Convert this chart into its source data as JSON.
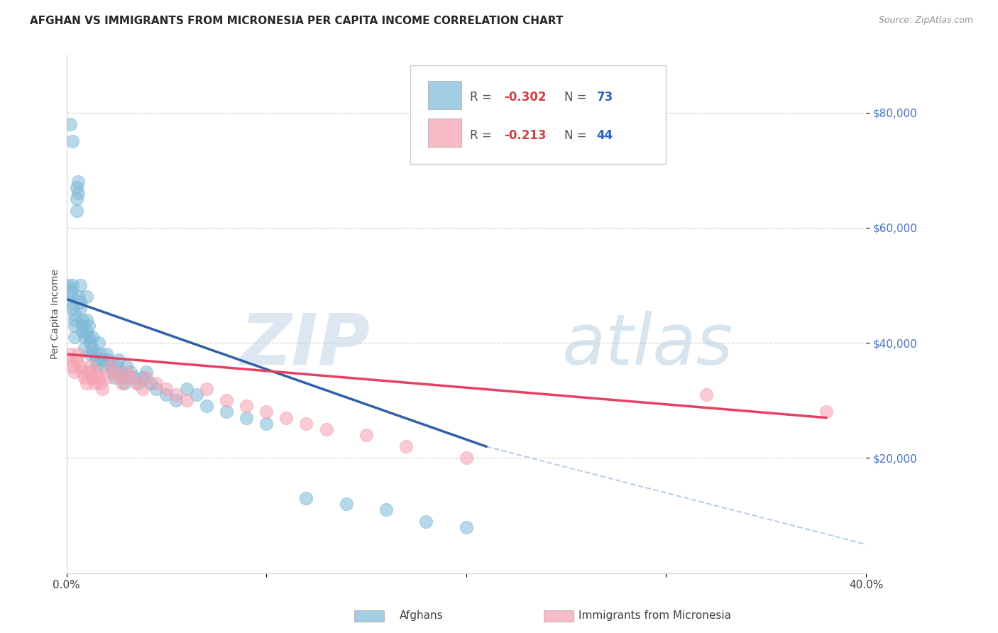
{
  "title": "AFGHAN VS IMMIGRANTS FROM MICRONESIA PER CAPITA INCOME CORRELATION CHART",
  "source": "Source: ZipAtlas.com",
  "ylabel": "Per Capita Income",
  "yticks": [
    20000,
    40000,
    60000,
    80000
  ],
  "ytick_labels": [
    "$20,000",
    "$40,000",
    "$60,000",
    "$80,000"
  ],
  "xlim": [
    0.0,
    0.4
  ],
  "ylim": [
    0,
    90000
  ],
  "afghan_color": "#7db8d8",
  "micronesia_color": "#f5a0b0",
  "trend_afghan_color": "#3060a8",
  "trend_micronesia_color": "#e84060",
  "trend_ext_color": "#b8cfe8",
  "background_color": "#ffffff",
  "legend_label_1": "Afghans",
  "legend_label_2": "Immigrants from Micronesia",
  "R1": "-0.302",
  "N1": "73",
  "R2": "-0.213",
  "N2": "44",
  "afghan_x": [
    0.001,
    0.002,
    0.002,
    0.002,
    0.003,
    0.003,
    0.003,
    0.003,
    0.004,
    0.004,
    0.004,
    0.004,
    0.005,
    0.005,
    0.005,
    0.006,
    0.006,
    0.006,
    0.007,
    0.007,
    0.007,
    0.008,
    0.008,
    0.008,
    0.009,
    0.009,
    0.01,
    0.01,
    0.01,
    0.011,
    0.011,
    0.012,
    0.012,
    0.013,
    0.013,
    0.014,
    0.015,
    0.015,
    0.016,
    0.017,
    0.018,
    0.019,
    0.02,
    0.021,
    0.022,
    0.023,
    0.024,
    0.025,
    0.026,
    0.027,
    0.028,
    0.029,
    0.03,
    0.032,
    0.034,
    0.036,
    0.038,
    0.04,
    0.042,
    0.045,
    0.05,
    0.055,
    0.06,
    0.065,
    0.07,
    0.08,
    0.09,
    0.1,
    0.12,
    0.14,
    0.16,
    0.18,
    0.2
  ],
  "afghan_y": [
    50000,
    47000,
    49000,
    78000,
    48000,
    50000,
    75000,
    46000,
    44000,
    43000,
    45000,
    41000,
    67000,
    65000,
    63000,
    68000,
    66000,
    48000,
    47000,
    50000,
    46000,
    44000,
    43000,
    42000,
    41000,
    39000,
    48000,
    44000,
    42000,
    43000,
    41000,
    40000,
    38000,
    41000,
    39000,
    38000,
    37000,
    36000,
    40000,
    38000,
    37000,
    36000,
    38000,
    37000,
    36000,
    35000,
    34000,
    36000,
    37000,
    35000,
    34000,
    33000,
    36000,
    35000,
    34000,
    33000,
    34000,
    35000,
    33000,
    32000,
    31000,
    30000,
    32000,
    31000,
    29000,
    28000,
    27000,
    26000,
    13000,
    12000,
    11000,
    9000,
    8000
  ],
  "micronesia_x": [
    0.001,
    0.002,
    0.003,
    0.004,
    0.005,
    0.006,
    0.007,
    0.008,
    0.009,
    0.01,
    0.011,
    0.012,
    0.013,
    0.014,
    0.015,
    0.016,
    0.017,
    0.018,
    0.02,
    0.022,
    0.024,
    0.026,
    0.028,
    0.03,
    0.032,
    0.035,
    0.038,
    0.04,
    0.045,
    0.05,
    0.055,
    0.06,
    0.07,
    0.08,
    0.09,
    0.1,
    0.11,
    0.12,
    0.13,
    0.15,
    0.17,
    0.2,
    0.32,
    0.38
  ],
  "micronesia_y": [
    37000,
    38000,
    36000,
    35000,
    37000,
    38000,
    36000,
    35000,
    34000,
    33000,
    35000,
    36000,
    34000,
    33000,
    35000,
    34000,
    33000,
    32000,
    34000,
    36000,
    35000,
    34000,
    33000,
    35000,
    34000,
    33000,
    32000,
    34000,
    33000,
    32000,
    31000,
    30000,
    32000,
    30000,
    29000,
    28000,
    27000,
    26000,
    25000,
    24000,
    22000,
    20000,
    31000,
    28000
  ],
  "blue_line_x": [
    0.001,
    0.21
  ],
  "blue_line_y": [
    47500,
    22000
  ],
  "pink_line_x": [
    0.001,
    0.38
  ],
  "pink_line_y": [
    38000,
    27000
  ],
  "ext_line_x": [
    0.21,
    0.4
  ],
  "ext_line_y": [
    22000,
    5000
  ]
}
